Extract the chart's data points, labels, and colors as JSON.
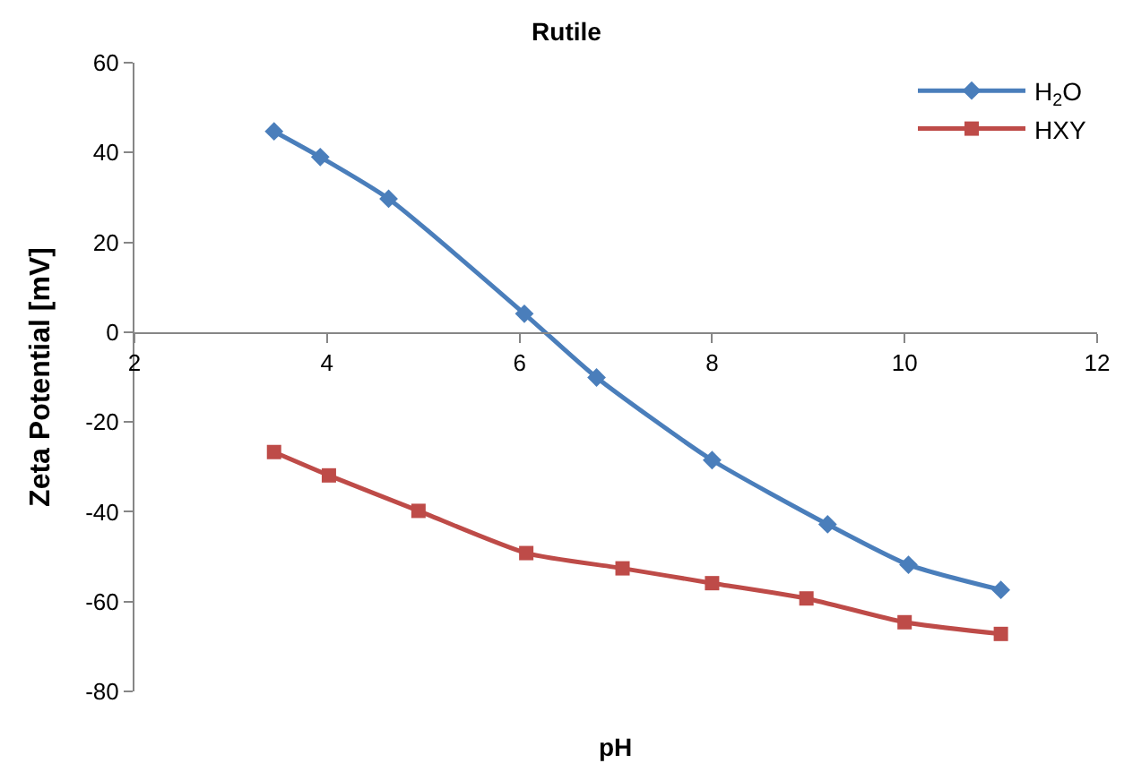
{
  "chart_data": {
    "type": "line",
    "title": "Rutile",
    "xlabel": "pH",
    "ylabel": "Zeta Potential [mV]",
    "xlim": [
      2,
      12
    ],
    "xticks": [
      2,
      4,
      6,
      8,
      10,
      12
    ],
    "ylim": [
      -80,
      60
    ],
    "yticks": [
      -80,
      -60,
      -40,
      -20,
      0,
      20,
      40,
      60
    ],
    "legend": "top right",
    "series": [
      {
        "name": "H$_{2}$O",
        "color": "#4a7ebb",
        "marker": "diamond",
        "x": [
          3.45,
          3.93,
          4.64,
          6.05,
          6.8,
          8.0,
          9.2,
          10.04,
          11.0
        ],
        "values": [
          44.7,
          39,
          29.7,
          4.1,
          -10.1,
          -28.5,
          -42.8,
          -51.8,
          -57.4
        ]
      },
      {
        "name": "HXY",
        "color": "#be4b48",
        "marker": "square",
        "x": [
          3.45,
          4.02,
          4.95,
          6.07,
          7.07,
          8.0,
          8.98,
          10.0,
          11.0
        ],
        "values": [
          -26.7,
          -31.9,
          -39.8,
          -49.2,
          -52.6,
          -55.9,
          -59.3,
          -64.6,
          -67.2
        ]
      }
    ]
  }
}
